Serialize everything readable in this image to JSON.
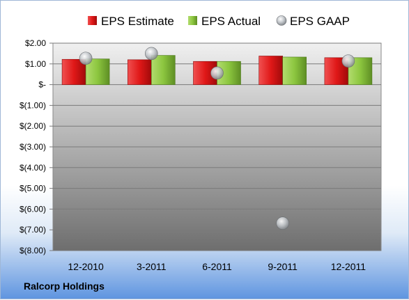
{
  "chart_data": {
    "type": "bar",
    "categories": [
      "12-2010",
      "3-2011",
      "6-2011",
      "9-2011",
      "12-2011"
    ],
    "series": [
      {
        "name": "EPS Estimate",
        "kind": "bar",
        "values": [
          1.22,
          1.2,
          1.12,
          1.38,
          1.3
        ],
        "color": "#e02020"
      },
      {
        "name": "EPS Actual",
        "kind": "bar",
        "values": [
          1.24,
          1.41,
          1.12,
          1.33,
          1.3
        ],
        "color": "#8cc63f"
      },
      {
        "name": "EPS GAAP",
        "kind": "scatter",
        "values": [
          1.27,
          1.5,
          0.56,
          -6.68,
          1.14
        ],
        "color": "#b0b4b8"
      }
    ],
    "ylim": [
      -8,
      2
    ],
    "ytick_values": [
      2,
      1,
      0,
      -1,
      -2,
      -3,
      -4,
      -5,
      -6,
      -7,
      -8
    ],
    "ytick_labels": [
      "$2.00",
      "$1.00",
      "$-",
      "$(1.00)",
      "$(2.00)",
      "$(3.00)",
      "$(4.00)",
      "$(5.00)",
      "$(6.00)",
      "$(7.00)",
      "$(8.00)"
    ],
    "grid": true,
    "legend_position": "top",
    "company": "Ralcorp Holdings"
  }
}
